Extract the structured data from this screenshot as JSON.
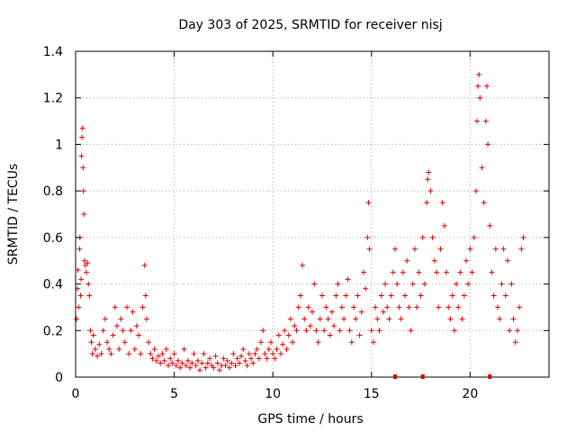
{
  "chart_data": {
    "type": "scatter",
    "title": "Day 303 of 2025, SRMTID for receiver nisj",
    "xlabel": "GPS time / hours",
    "ylabel": "SRMTID / TECUs",
    "xlim": [
      0,
      24
    ],
    "ylim": [
      0,
      1.4
    ],
    "xticks": [
      "0",
      "5",
      "10",
      "15",
      "20"
    ],
    "xtick_values": [
      0,
      5,
      10,
      15,
      20
    ],
    "yticks": [
      "0",
      "0.2",
      "0.4",
      "0.6",
      "0.8",
      "1",
      "1.2",
      "1.4"
    ],
    "ytick_values": [
      0,
      0.2,
      0.4,
      0.6,
      0.8,
      1.0,
      1.2,
      1.4
    ],
    "grid": true,
    "marker": "+",
    "color": "#e00000",
    "series": [
      {
        "name": "SRMTID",
        "points": [
          [
            0.05,
            0.25
          ],
          [
            0.1,
            0.38
          ],
          [
            0.12,
            0.46
          ],
          [
            0.15,
            0.3
          ],
          [
            0.2,
            0.55
          ],
          [
            0.22,
            0.6
          ],
          [
            0.25,
            0.35
          ],
          [
            0.28,
            0.42
          ],
          [
            0.3,
            0.95
          ],
          [
            0.32,
            1.03
          ],
          [
            0.35,
            1.07
          ],
          [
            0.38,
            0.9
          ],
          [
            0.4,
            0.8
          ],
          [
            0.42,
            0.7
          ],
          [
            0.45,
            0.5
          ],
          [
            0.5,
            0.48
          ],
          [
            0.55,
            0.45
          ],
          [
            0.6,
            0.49
          ],
          [
            0.65,
            0.4
          ],
          [
            0.7,
            0.35
          ],
          [
            0.75,
            0.2
          ],
          [
            0.8,
            0.15
          ],
          [
            0.85,
            0.1
          ],
          [
            0.9,
            0.18
          ],
          [
            1.0,
            0.12
          ],
          [
            1.1,
            0.09
          ],
          [
            1.2,
            0.14
          ],
          [
            1.3,
            0.1
          ],
          [
            1.4,
            0.2
          ],
          [
            1.5,
            0.25
          ],
          [
            1.6,
            0.15
          ],
          [
            1.7,
            0.12
          ],
          [
            1.8,
            0.1
          ],
          [
            1.9,
            0.18
          ],
          [
            2.0,
            0.3
          ],
          [
            2.1,
            0.22
          ],
          [
            2.2,
            0.12
          ],
          [
            2.3,
            0.25
          ],
          [
            2.4,
            0.2
          ],
          [
            2.5,
            0.15
          ],
          [
            2.6,
            0.3
          ],
          [
            2.7,
            0.1
          ],
          [
            2.8,
            0.2
          ],
          [
            2.9,
            0.28
          ],
          [
            3.0,
            0.12
          ],
          [
            3.1,
            0.22
          ],
          [
            3.2,
            0.18
          ],
          [
            3.3,
            0.1
          ],
          [
            3.4,
            0.3
          ],
          [
            3.5,
            0.48
          ],
          [
            3.55,
            0.35
          ],
          [
            3.6,
            0.25
          ],
          [
            3.7,
            0.15
          ],
          [
            3.8,
            0.1
          ],
          [
            3.9,
            0.08
          ],
          [
            4.0,
            0.12
          ],
          [
            4.1,
            0.07
          ],
          [
            4.2,
            0.09
          ],
          [
            4.3,
            0.06
          ],
          [
            4.4,
            0.1
          ],
          [
            4.5,
            0.07
          ],
          [
            4.6,
            0.12
          ],
          [
            4.7,
            0.05
          ],
          [
            4.8,
            0.08
          ],
          [
            4.9,
            0.06
          ],
          [
            5.0,
            0.1
          ],
          [
            5.1,
            0.05
          ],
          [
            5.2,
            0.07
          ],
          [
            5.3,
            0.04
          ],
          [
            5.4,
            0.06
          ],
          [
            5.5,
            0.12
          ],
          [
            5.6,
            0.05
          ],
          [
            5.7,
            0.07
          ],
          [
            5.8,
            0.04
          ],
          [
            5.9,
            0.06
          ],
          [
            6.0,
            0.1
          ],
          [
            6.1,
            0.05
          ],
          [
            6.2,
            0.07
          ],
          [
            6.3,
            0.03
          ],
          [
            6.4,
            0.06
          ],
          [
            6.5,
            0.1
          ],
          [
            6.6,
            0.04
          ],
          [
            6.7,
            0.06
          ],
          [
            6.8,
            0.08
          ],
          [
            6.9,
            0.05
          ],
          [
            7.0,
            0.04
          ],
          [
            7.1,
            0.09
          ],
          [
            7.2,
            0.06
          ],
          [
            7.3,
            0.03
          ],
          [
            7.4,
            0.05
          ],
          [
            7.5,
            0.08
          ],
          [
            7.6,
            0.05
          ],
          [
            7.7,
            0.07
          ],
          [
            7.8,
            0.04
          ],
          [
            7.9,
            0.06
          ],
          [
            8.0,
            0.1
          ],
          [
            8.1,
            0.05
          ],
          [
            8.2,
            0.08
          ],
          [
            8.3,
            0.06
          ],
          [
            8.4,
            0.09
          ],
          [
            8.5,
            0.12
          ],
          [
            8.6,
            0.07
          ],
          [
            8.7,
            0.05
          ],
          [
            8.8,
            0.1
          ],
          [
            8.9,
            0.08
          ],
          [
            9.0,
            0.06
          ],
          [
            9.1,
            0.1
          ],
          [
            9.2,
            0.12
          ],
          [
            9.3,
            0.08
          ],
          [
            9.4,
            0.15
          ],
          [
            9.5,
            0.2
          ],
          [
            9.6,
            0.1
          ],
          [
            9.7,
            0.08
          ],
          [
            9.8,
            0.12
          ],
          [
            9.9,
            0.15
          ],
          [
            10.0,
            0.1
          ],
          [
            10.1,
            0.08
          ],
          [
            10.2,
            0.12
          ],
          [
            10.3,
            0.18
          ],
          [
            10.4,
            0.1
          ],
          [
            10.5,
            0.14
          ],
          [
            10.6,
            0.2
          ],
          [
            10.7,
            0.12
          ],
          [
            10.8,
            0.18
          ],
          [
            10.9,
            0.25
          ],
          [
            11.0,
            0.15
          ],
          [
            11.1,
            0.22
          ],
          [
            11.2,
            0.2
          ],
          [
            11.3,
            0.3
          ],
          [
            11.4,
            0.35
          ],
          [
            11.5,
            0.48
          ],
          [
            11.6,
            0.25
          ],
          [
            11.7,
            0.2
          ],
          [
            11.8,
            0.3
          ],
          [
            11.9,
            0.22
          ],
          [
            12.0,
            0.28
          ],
          [
            12.1,
            0.4
          ],
          [
            12.2,
            0.2
          ],
          [
            12.3,
            0.15
          ],
          [
            12.4,
            0.25
          ],
          [
            12.5,
            0.35
          ],
          [
            12.6,
            0.2
          ],
          [
            12.7,
            0.3
          ],
          [
            12.8,
            0.25
          ],
          [
            12.9,
            0.18
          ],
          [
            13.0,
            0.28
          ],
          [
            13.1,
            0.22
          ],
          [
            13.2,
            0.35
          ],
          [
            13.3,
            0.4
          ],
          [
            13.4,
            0.2
          ],
          [
            13.5,
            0.3
          ],
          [
            13.6,
            0.25
          ],
          [
            13.7,
            0.35
          ],
          [
            13.8,
            0.42
          ],
          [
            13.9,
            0.2
          ],
          [
            14.0,
            0.15
          ],
          [
            14.1,
            0.3
          ],
          [
            14.2,
            0.25
          ],
          [
            14.3,
            0.35
          ],
          [
            14.4,
            0.18
          ],
          [
            14.5,
            0.28
          ],
          [
            14.6,
            0.45
          ],
          [
            14.7,
            0.38
          ],
          [
            14.8,
            0.6
          ],
          [
            14.85,
            0.75
          ],
          [
            14.9,
            0.55
          ],
          [
            15.0,
            0.2
          ],
          [
            15.1,
            0.15
          ],
          [
            15.2,
            0.3
          ],
          [
            15.3,
            0.25
          ],
          [
            15.4,
            0.2
          ],
          [
            15.5,
            0.35
          ],
          [
            15.6,
            0.28
          ],
          [
            15.7,
            0.4
          ],
          [
            15.8,
            0.3
          ],
          [
            15.9,
            0.25
          ],
          [
            16.0,
            0.35
          ],
          [
            16.1,
            0.45
          ],
          [
            16.2,
            0.55
          ],
          [
            16.3,
            0.4
          ],
          [
            16.4,
            0.3
          ],
          [
            16.5,
            0.25
          ],
          [
            16.6,
            0.45
          ],
          [
            16.7,
            0.35
          ],
          [
            16.8,
            0.5
          ],
          [
            16.9,
            0.3
          ],
          [
            17.0,
            0.2
          ],
          [
            17.1,
            0.4
          ],
          [
            17.2,
            0.55
          ],
          [
            17.3,
            0.3
          ],
          [
            17.4,
            0.45
          ],
          [
            17.5,
            0.35
          ],
          [
            17.6,
            0.6
          ],
          [
            17.7,
            0.4
          ],
          [
            17.8,
            0.75
          ],
          [
            17.85,
            0.85
          ],
          [
            17.9,
            0.88
          ],
          [
            18.0,
            0.8
          ],
          [
            18.1,
            0.6
          ],
          [
            18.2,
            0.5
          ],
          [
            18.3,
            0.45
          ],
          [
            18.4,
            0.3
          ],
          [
            18.5,
            0.55
          ],
          [
            18.6,
            0.75
          ],
          [
            18.7,
            0.65
          ],
          [
            18.8,
            0.45
          ],
          [
            18.9,
            0.3
          ],
          [
            19.0,
            0.25
          ],
          [
            19.1,
            0.35
          ],
          [
            19.2,
            0.2
          ],
          [
            19.3,
            0.4
          ],
          [
            19.4,
            0.3
          ],
          [
            19.5,
            0.45
          ],
          [
            19.6,
            0.25
          ],
          [
            19.7,
            0.35
          ],
          [
            19.8,
            0.5
          ],
          [
            19.9,
            0.4
          ],
          [
            20.0,
            0.55
          ],
          [
            20.1,
            0.45
          ],
          [
            20.2,
            0.6
          ],
          [
            20.3,
            0.8
          ],
          [
            20.35,
            1.1
          ],
          [
            20.4,
            1.25
          ],
          [
            20.45,
            1.3
          ],
          [
            20.5,
            1.2
          ],
          [
            20.6,
            0.9
          ],
          [
            20.7,
            0.75
          ],
          [
            20.8,
            1.1
          ],
          [
            20.85,
            1.25
          ],
          [
            20.9,
            1.0
          ],
          [
            21.0,
            0.65
          ],
          [
            21.1,
            0.45
          ],
          [
            21.2,
            0.35
          ],
          [
            21.3,
            0.55
          ],
          [
            21.4,
            0.3
          ],
          [
            21.5,
            0.25
          ],
          [
            21.6,
            0.4
          ],
          [
            21.7,
            0.55
          ],
          [
            21.8,
            0.35
          ],
          [
            21.9,
            0.5
          ],
          [
            22.0,
            0.2
          ],
          [
            22.1,
            0.4
          ],
          [
            22.2,
            0.25
          ],
          [
            22.3,
            0.15
          ],
          [
            22.4,
            0.2
          ],
          [
            22.5,
            0.3
          ],
          [
            22.6,
            0.55
          ],
          [
            22.7,
            0.6
          ]
        ]
      }
    ],
    "rug_x": [
      16.2,
      17.6,
      21.0
    ]
  }
}
